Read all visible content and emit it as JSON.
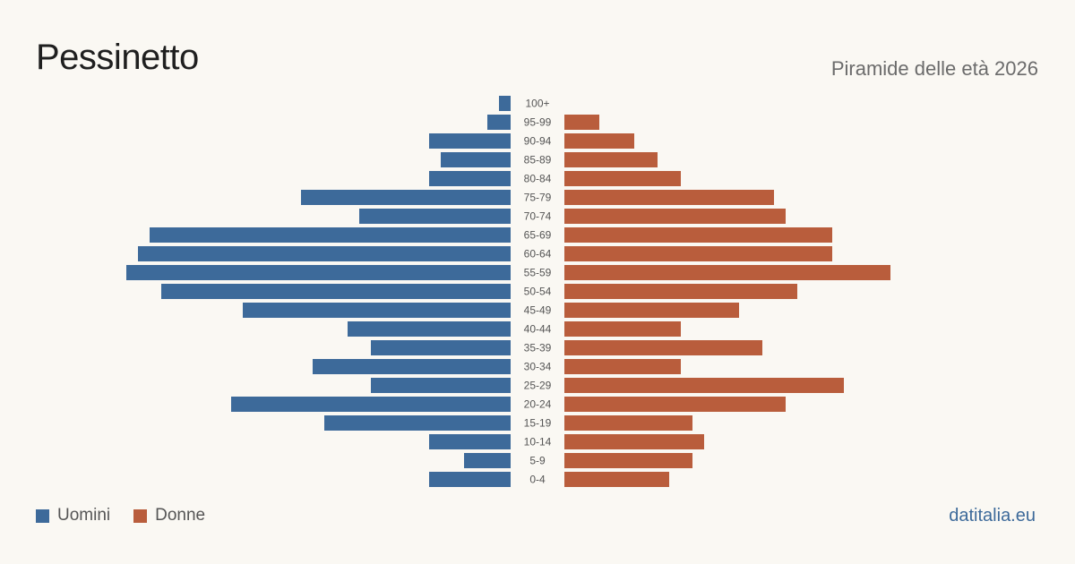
{
  "header": {
    "title": "Pessinetto",
    "subtitle": "Piramide delle età 2026"
  },
  "legend": {
    "men_label": "Uomini",
    "women_label": "Donne"
  },
  "footer": {
    "brand": "datitalia.eu"
  },
  "colors": {
    "men": "#3d6a9a",
    "women": "#b95d3c",
    "brand": "#3d6a9a",
    "background": "#faf8f3"
  },
  "chart_data": {
    "type": "bar",
    "orientation": "horizontal-pyramid",
    "categories": [
      "100+",
      "95-99",
      "90-94",
      "85-89",
      "80-84",
      "75-79",
      "70-74",
      "65-69",
      "60-64",
      "55-59",
      "50-54",
      "45-49",
      "40-44",
      "35-39",
      "30-34",
      "25-29",
      "20-24",
      "15-19",
      "10-14",
      "5-9",
      "0-4"
    ],
    "series": [
      {
        "name": "Uomini",
        "values": [
          1,
          2,
          7,
          6,
          7,
          18,
          13,
          31,
          32,
          33,
          30,
          23,
          14,
          12,
          17,
          12,
          24,
          16,
          7,
          4,
          7
        ]
      },
      {
        "name": "Donne",
        "values": [
          0,
          3,
          6,
          8,
          10,
          18,
          19,
          23,
          23,
          28,
          20,
          15,
          10,
          17,
          10,
          24,
          19,
          11,
          12,
          11,
          9
        ]
      }
    ],
    "xlabel": "",
    "ylabel": "",
    "grid": false,
    "legend_position": "bottom-left"
  }
}
